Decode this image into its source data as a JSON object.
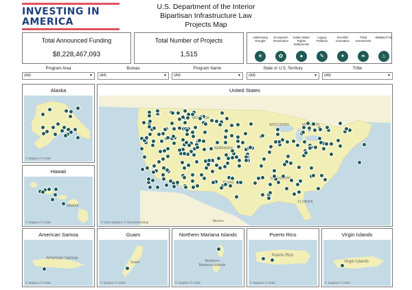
{
  "header": {
    "logo_line1": "INVESTING IN",
    "logo_line2": "AMERICA",
    "title_line1": "U.S. Department of the Interior",
    "title_line2": "Bipartisan Infrastructure Law",
    "title_line3": "Projects Map"
  },
  "kpis": {
    "funding_label": "Total Announced Funding",
    "funding_value": "$8,228,467,093",
    "projects_label": "Total Number of  Projects",
    "projects_value": "1,515"
  },
  "topics": [
    {
      "label": "Addressing Drought",
      "icon": "water-drop-icon",
      "glyph": "☀"
    },
    {
      "label": "Ecosystem Restoration",
      "icon": "leaf-icon",
      "glyph": "✿"
    },
    {
      "label": "Indian Water Rights Settlements",
      "icon": "drop-icon",
      "glyph": "●"
    },
    {
      "label": "Legacy Pollution",
      "icon": "pollution-icon",
      "glyph": "✎"
    },
    {
      "label": "Scientific Innovation",
      "icon": "lightbulb-icon",
      "glyph": "✦"
    },
    {
      "label": "Tribal Investments",
      "icon": "feather-icon",
      "glyph": "❧"
    },
    {
      "label": "Wildland Fire",
      "icon": "fire-icon",
      "glyph": "♨"
    }
  ],
  "filters": [
    {
      "label": "Program Area",
      "value": "(All)"
    },
    {
      "label": "Bureau",
      "value": "(All)"
    },
    {
      "label": "Program Name",
      "value": "(All)"
    },
    {
      "label": "State or U.S. Territory",
      "value": "(All)"
    },
    {
      "label": "Tribe",
      "value": "(All)"
    }
  ],
  "maps": {
    "alaska": {
      "title": "Alaska",
      "attribution": "© Mapbox  © OSM"
    },
    "hawaii": {
      "title": "Hawaii",
      "attribution": "© Mapbox  © OSM",
      "label": "HAWAII"
    },
    "us": {
      "title": "United States",
      "attribution": "© 2023 Mapbox  © OpenStreetMap",
      "labels": [
        "MONTANA",
        "WISCONSIN",
        "MICHIGAN",
        "NEBRASKA",
        "TEXAS",
        "MISSISSIPPI",
        "FLORIDA",
        "Mexico"
      ]
    },
    "american_samoa": {
      "title": "American Samoa",
      "attribution": "© Mapbox  © OSM",
      "label": "American Samoa"
    },
    "guam": {
      "title": "Guam",
      "attribution": "© Mapbox  © OSM",
      "label": "Guam"
    },
    "northern_mariana": {
      "title": "Northern Mariana Islands",
      "attribution": "© Mapbox  © OSM",
      "label": "Northern Mariana Islands"
    },
    "puerto_rico": {
      "title": "Puerto Rico",
      "attribution": "© Mapbox  © OSM",
      "label": "Puerto Rico"
    },
    "virgin_islands": {
      "title": "Virgin Islands",
      "attribution": "© Mapbox  © OSM",
      "label": "Virgin Islands"
    }
  },
  "colors": {
    "pin": "#1f5a55",
    "land": "#f2efb6",
    "water": "#c4dbe6",
    "logo_blue": "#1f3f7a",
    "logo_red": "#e0505c"
  }
}
